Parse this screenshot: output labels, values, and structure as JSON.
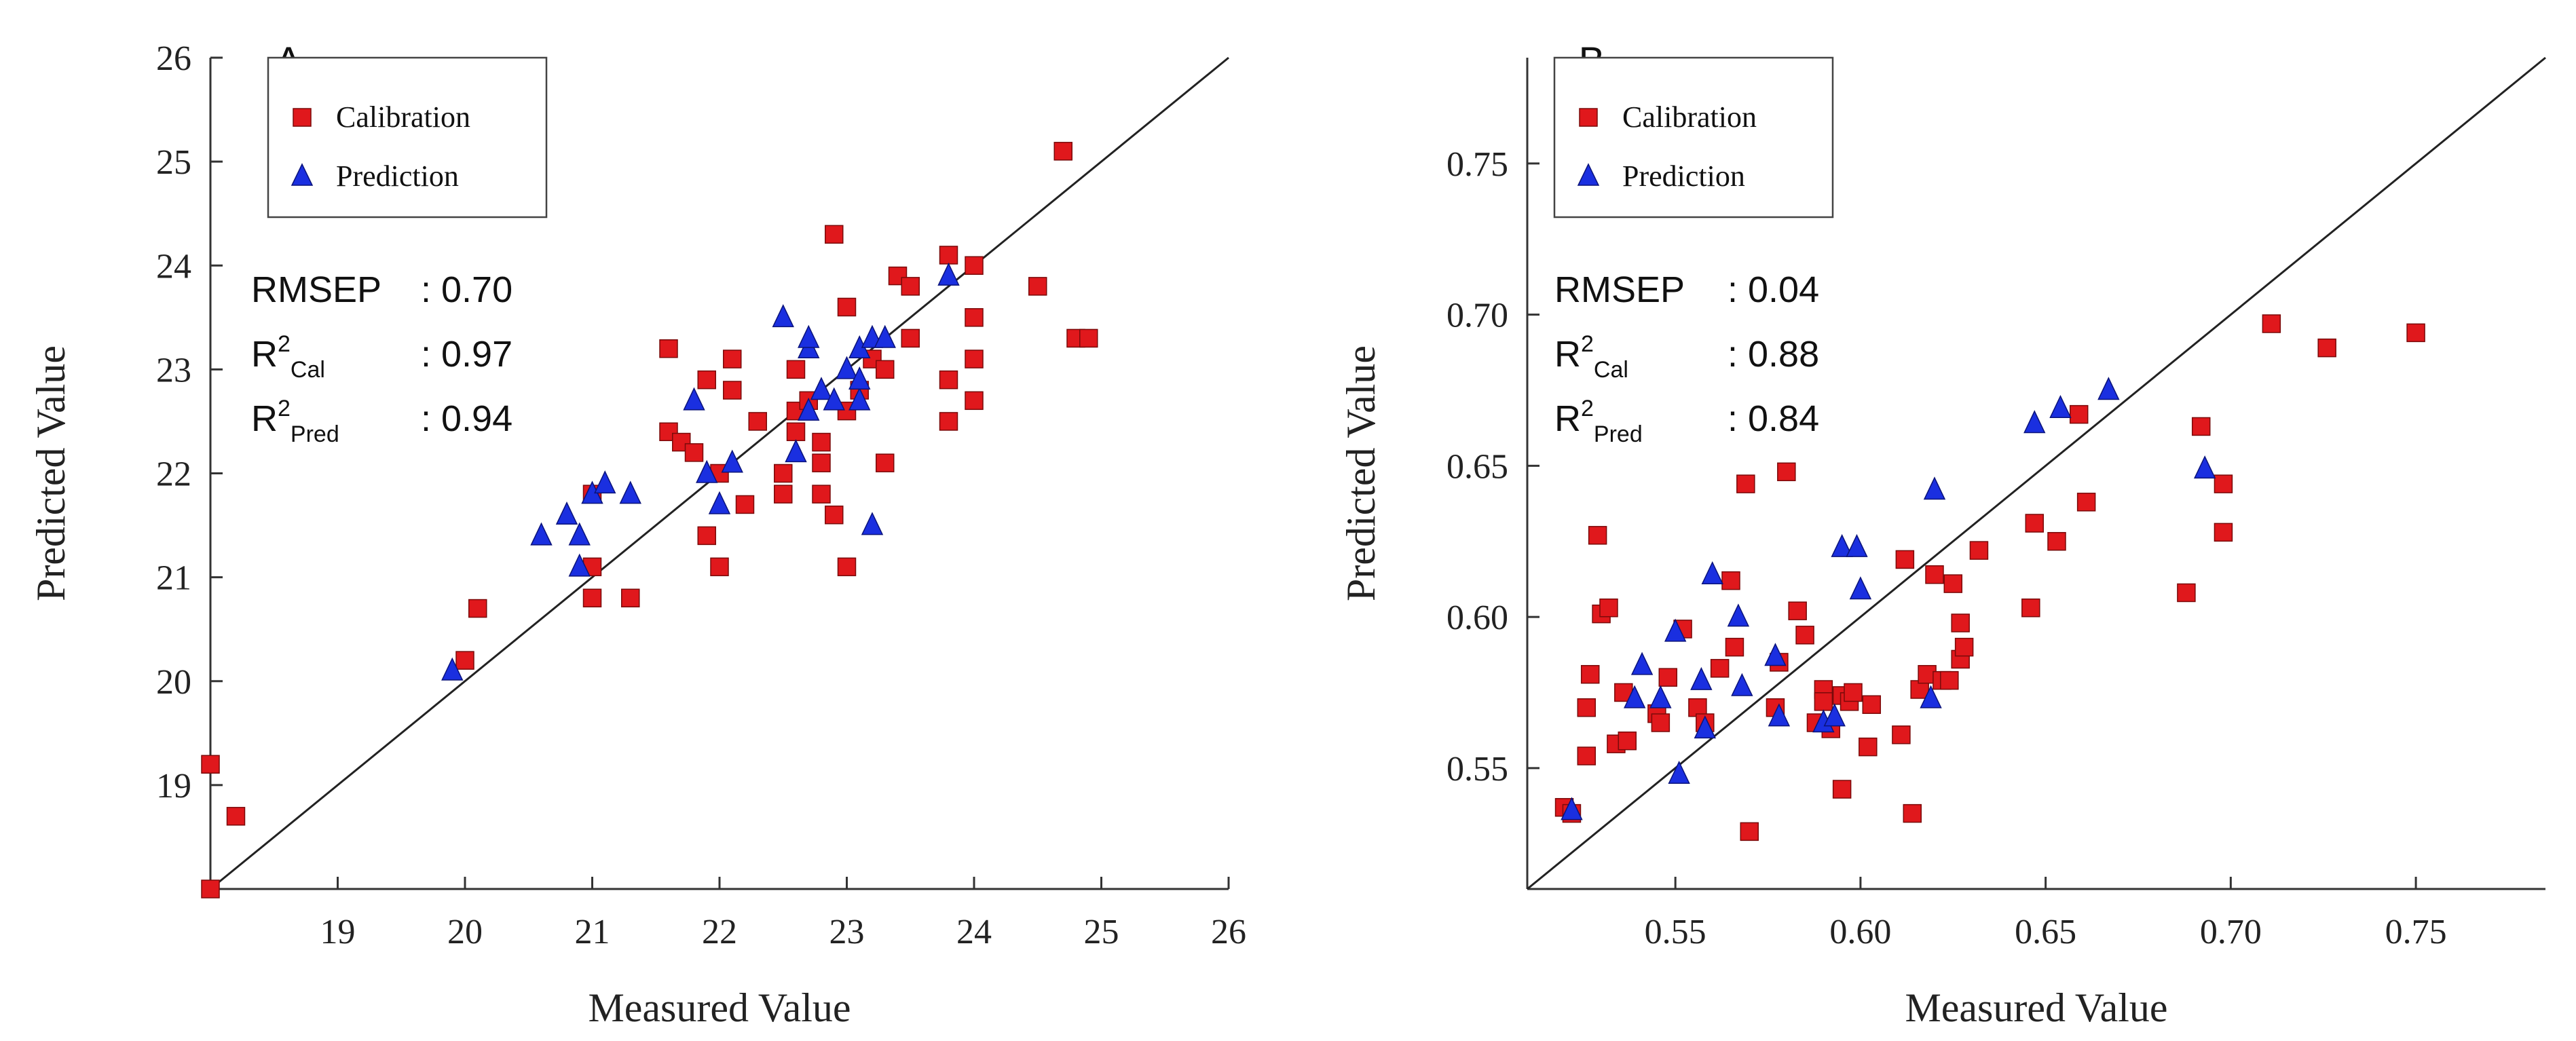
{
  "colors": {
    "calibration": "#e0181c",
    "prediction": "#1a2fe0",
    "axis": "#333333",
    "line": "#222222"
  },
  "chart_data": [
    {
      "type": "scatter",
      "panel_label": "A",
      "xlabel": "Measured Value",
      "ylabel": "Predicted Value",
      "xlim": [
        18,
        26
      ],
      "ylim": [
        18,
        26
      ],
      "xticks": [
        "19",
        "20",
        "21",
        "22",
        "23",
        "24",
        "25",
        "26"
      ],
      "yticks": [
        "19",
        "20",
        "21",
        "22",
        "23",
        "24",
        "25",
        "26"
      ],
      "legend": [
        "Calibration",
        "Prediction"
      ],
      "stats": [
        {
          "label": "RMSEP",
          "sub": "",
          "value": ": 0.70"
        },
        {
          "label": "R",
          "sup": "2",
          "sub": "Cal",
          "value": ": 0.97"
        },
        {
          "label": "R",
          "sup": "2",
          "sub": "Pred",
          "value": ": 0.94"
        }
      ],
      "diagonal": [
        [
          18,
          18
        ],
        [
          26,
          26
        ]
      ],
      "series": [
        {
          "name": "Calibration",
          "marker": "square",
          "points": [
            [
              18.0,
              19.2
            ],
            [
              18.2,
              18.7
            ],
            [
              18.0,
              18.0
            ],
            [
              20.0,
              20.2
            ],
            [
              20.1,
              20.7
            ],
            [
              21.0,
              20.8
            ],
            [
              21.0,
              21.1
            ],
            [
              21.0,
              21.8
            ],
            [
              21.3,
              20.8
            ],
            [
              21.9,
              21.4
            ],
            [
              21.6,
              22.4
            ],
            [
              21.7,
              22.3
            ],
            [
              21.8,
              22.2
            ],
            [
              21.9,
              22.9
            ],
            [
              21.6,
              23.2
            ],
            [
              22.0,
              21.1
            ],
            [
              22.0,
              22.0
            ],
            [
              22.1,
              22.8
            ],
            [
              22.1,
              23.1
            ],
            [
              22.2,
              21.7
            ],
            [
              22.3,
              22.5
            ],
            [
              22.5,
              21.8
            ],
            [
              22.5,
              22.0
            ],
            [
              22.6,
              22.4
            ],
            [
              22.6,
              22.6
            ],
            [
              22.7,
              22.7
            ],
            [
              22.8,
              22.1
            ],
            [
              22.8,
              22.3
            ],
            [
              22.8,
              21.8
            ],
            [
              22.9,
              21.6
            ],
            [
              23.0,
              21.1
            ],
            [
              23.0,
              22.6
            ],
            [
              23.1,
              22.8
            ],
            [
              23.2,
              23.1
            ],
            [
              23.3,
              22.1
            ],
            [
              22.9,
              24.3
            ],
            [
              23.0,
              23.6
            ],
            [
              23.4,
              23.9
            ],
            [
              23.5,
              23.3
            ],
            [
              23.5,
              23.8
            ],
            [
              23.8,
              22.5
            ],
            [
              23.8,
              22.9
            ],
            [
              23.8,
              24.1
            ],
            [
              24.0,
              22.7
            ],
            [
              24.0,
              23.1
            ],
            [
              24.0,
              23.5
            ],
            [
              24.0,
              24.0
            ],
            [
              24.5,
              23.8
            ],
            [
              24.7,
              25.1
            ],
            [
              24.8,
              23.3
            ],
            [
              24.9,
              23.3
            ],
            [
              22.6,
              23.0
            ],
            [
              23.3,
              23.0
            ]
          ]
        },
        {
          "name": "Prediction",
          "marker": "triangle",
          "points": [
            [
              19.9,
              20.1
            ],
            [
              20.6,
              21.4
            ],
            [
              20.8,
              21.6
            ],
            [
              20.9,
              21.1
            ],
            [
              20.9,
              21.4
            ],
            [
              21.0,
              21.8
            ],
            [
              21.1,
              21.9
            ],
            [
              21.3,
              21.8
            ],
            [
              21.8,
              22.7
            ],
            [
              21.9,
              22.0
            ],
            [
              22.0,
              21.7
            ],
            [
              22.1,
              22.1
            ],
            [
              22.5,
              23.5
            ],
            [
              22.6,
              22.2
            ],
            [
              22.7,
              22.6
            ],
            [
              22.7,
              23.2
            ],
            [
              22.7,
              23.3
            ],
            [
              22.8,
              22.8
            ],
            [
              22.9,
              22.7
            ],
            [
              23.0,
              23.0
            ],
            [
              23.1,
              22.7
            ],
            [
              23.1,
              22.9
            ],
            [
              23.1,
              23.2
            ],
            [
              23.2,
              23.3
            ],
            [
              23.2,
              21.5
            ],
            [
              23.3,
              23.3
            ],
            [
              23.8,
              23.9
            ]
          ]
        }
      ]
    },
    {
      "type": "scatter",
      "panel_label": "B",
      "xlabel": "Measured Value",
      "ylabel": "Predicted Value",
      "xlim": [
        0.51,
        0.785
      ],
      "ylim": [
        0.51,
        0.785
      ],
      "xticks": [
        "0.55",
        "0.60",
        "0.65",
        "0.70",
        "0.75"
      ],
      "yticks": [
        "0.55",
        "0.60",
        "0.65",
        "0.70",
        "0.75"
      ],
      "legend": [
        "Calibration",
        "Prediction"
      ],
      "stats": [
        {
          "label": "RMSEP",
          "sub": "",
          "value": ": 0.04"
        },
        {
          "label": "R",
          "sup": "2",
          "sub": "Cal",
          "value": ": 0.88"
        },
        {
          "label": "R",
          "sup": "2",
          "sub": "Pred",
          "value": ": 0.84"
        }
      ],
      "diagonal": [
        [
          0.51,
          0.51
        ],
        [
          0.785,
          0.785
        ]
      ],
      "series": [
        {
          "name": "Calibration",
          "marker": "square",
          "points": [
            [
              0.52,
              0.537
            ],
            [
              0.522,
              0.535
            ],
            [
              0.526,
              0.554
            ],
            [
              0.526,
              0.57
            ],
            [
              0.527,
              0.581
            ],
            [
              0.529,
              0.627
            ],
            [
              0.53,
              0.601
            ],
            [
              0.532,
              0.603
            ],
            [
              0.534,
              0.558
            ],
            [
              0.536,
              0.575
            ],
            [
              0.537,
              0.559
            ],
            [
              0.545,
              0.568
            ],
            [
              0.546,
              0.565
            ],
            [
              0.548,
              0.58
            ],
            [
              0.552,
              0.596
            ],
            [
              0.556,
              0.57
            ],
            [
              0.558,
              0.565
            ],
            [
              0.562,
              0.583
            ],
            [
              0.565,
              0.612
            ],
            [
              0.566,
              0.59
            ],
            [
              0.569,
              0.644
            ],
            [
              0.57,
              0.529
            ],
            [
              0.577,
              0.57
            ],
            [
              0.578,
              0.585
            ],
            [
              0.58,
              0.648
            ],
            [
              0.583,
              0.602
            ],
            [
              0.585,
              0.594
            ],
            [
              0.588,
              0.565
            ],
            [
              0.59,
              0.576
            ],
            [
              0.59,
              0.572
            ],
            [
              0.592,
              0.563
            ],
            [
              0.595,
              0.574
            ],
            [
              0.595,
              0.543
            ],
            [
              0.597,
              0.572
            ],
            [
              0.598,
              0.575
            ],
            [
              0.602,
              0.557
            ],
            [
              0.603,
              0.571
            ],
            [
              0.611,
              0.561
            ],
            [
              0.612,
              0.619
            ],
            [
              0.614,
              0.535
            ],
            [
              0.616,
              0.576
            ],
            [
              0.618,
              0.581
            ],
            [
              0.62,
              0.614
            ],
            [
              0.622,
              0.579
            ],
            [
              0.624,
              0.579
            ],
            [
              0.625,
              0.611
            ],
            [
              0.627,
              0.586
            ],
            [
              0.627,
              0.598
            ],
            [
              0.628,
              0.59
            ],
            [
              0.632,
              0.622
            ],
            [
              0.646,
              0.603
            ],
            [
              0.647,
              0.631
            ],
            [
              0.653,
              0.625
            ],
            [
              0.659,
              0.667
            ],
            [
              0.661,
              0.638
            ],
            [
              0.688,
              0.608
            ],
            [
              0.692,
              0.663
            ],
            [
              0.698,
              0.644
            ],
            [
              0.698,
              0.628
            ],
            [
              0.711,
              0.697
            ],
            [
              0.726,
              0.689
            ],
            [
              0.75,
              0.694
            ]
          ]
        },
        {
          "name": "Prediction",
          "marker": "triangle",
          "points": [
            [
              0.522,
              0.536
            ],
            [
              0.539,
              0.573
            ],
            [
              0.541,
              0.584
            ],
            [
              0.546,
              0.573
            ],
            [
              0.55,
              0.595
            ],
            [
              0.551,
              0.548
            ],
            [
              0.557,
              0.579
            ],
            [
              0.558,
              0.563
            ],
            [
              0.56,
              0.614
            ],
            [
              0.567,
              0.6
            ],
            [
              0.568,
              0.577
            ],
            [
              0.577,
              0.587
            ],
            [
              0.578,
              0.567
            ],
            [
              0.59,
              0.565
            ],
            [
              0.593,
              0.567
            ],
            [
              0.595,
              0.623
            ],
            [
              0.599,
              0.623
            ],
            [
              0.6,
              0.609
            ],
            [
              0.619,
              0.573
            ],
            [
              0.62,
              0.642
            ],
            [
              0.647,
              0.664
            ],
            [
              0.654,
              0.669
            ],
            [
              0.667,
              0.675
            ],
            [
              0.693,
              0.649
            ]
          ]
        }
      ]
    }
  ]
}
